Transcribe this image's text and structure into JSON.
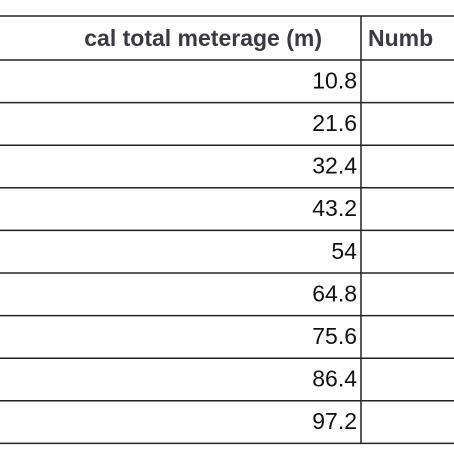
{
  "table": {
    "header": [
      "cal total meterage (m)",
      "Numb"
    ],
    "rows": [
      [
        10.8
      ],
      [
        21.6
      ],
      [
        32.4
      ],
      [
        43.2
      ],
      [
        54
      ],
      [
        64.8
      ],
      [
        75.6
      ],
      [
        86.4
      ],
      [
        97.2
      ]
    ]
  }
}
